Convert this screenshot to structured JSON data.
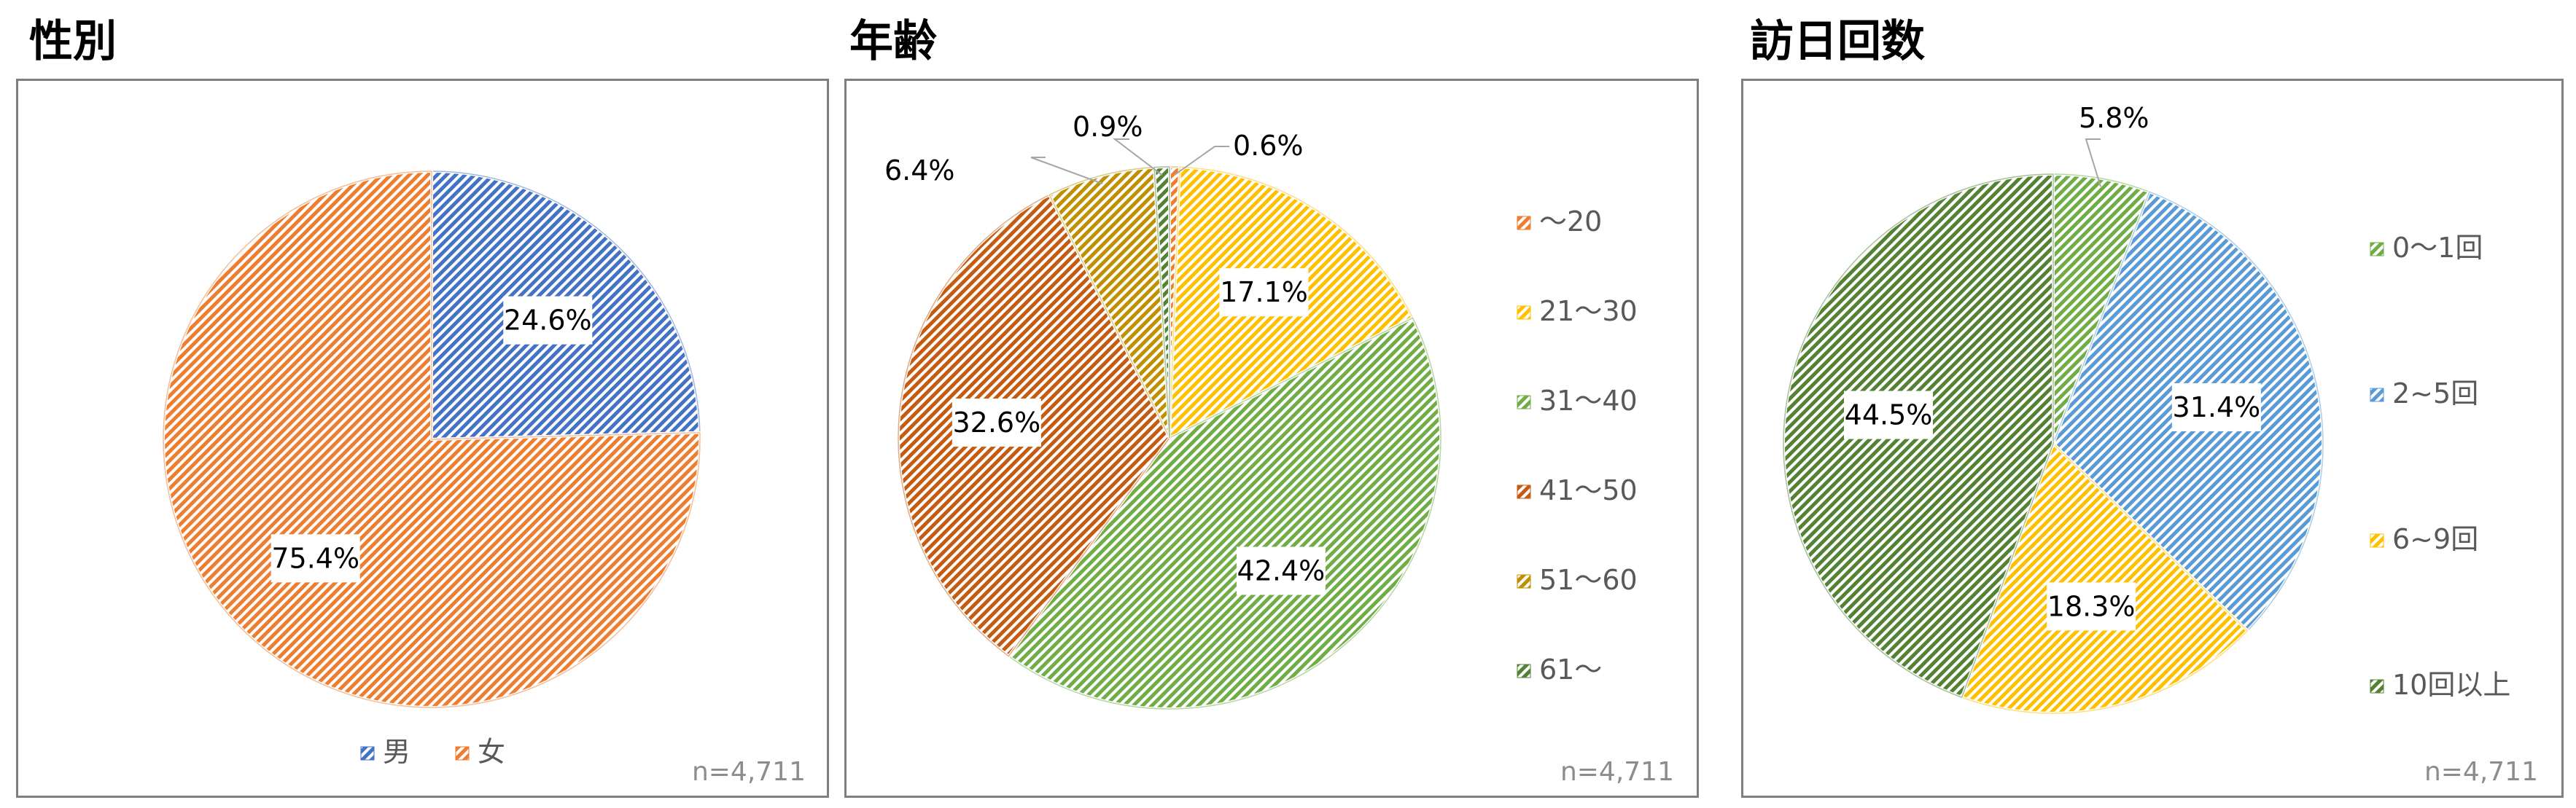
{
  "titles": {
    "gender": "性別",
    "age": "年齢",
    "visits": "訪日回数"
  },
  "sample_note": "n=4,711",
  "colors": {
    "blue": "#4472c4",
    "orange": "#ed7d31",
    "yellow": "#ffc000",
    "green": "#70ad47",
    "lightblue": "#5b9bd5",
    "brown": "#c55a11",
    "olive": "#bf9000",
    "darkgreen": "#548235"
  },
  "chart_data": [
    {
      "type": "pie",
      "title": "性別",
      "categories": [
        "男",
        "女"
      ],
      "values": [
        24.6,
        75.4
      ],
      "value_labels": [
        "24.6%",
        "75.4%"
      ],
      "colors": [
        "#4472c4",
        "#ed7d31"
      ],
      "legend": "bottom",
      "note": "n=4,711"
    },
    {
      "type": "pie",
      "title": "年齢",
      "categories": [
        "～20",
        "21～30",
        "31～40",
        "41～50",
        "51～60",
        "61～"
      ],
      "values": [
        0.6,
        17.1,
        42.4,
        32.6,
        6.4,
        0.9
      ],
      "value_labels": [
        "0.6%",
        "17.1%",
        "42.4%",
        "32.6%",
        "6.4%",
        "0.9%"
      ],
      "colors": [
        "#ed7d31",
        "#ffc000",
        "#70ad47",
        "#c55a11",
        "#bf9000",
        "#548235"
      ],
      "legend": "right",
      "note": "n=4,711"
    },
    {
      "type": "pie",
      "title": "訪日回数",
      "categories": [
        "0～1回",
        "2~5回",
        "6~9回",
        "10回以上"
      ],
      "values": [
        5.8,
        31.4,
        18.3,
        44.5
      ],
      "value_labels": [
        "5.8%",
        "31.4%",
        "18.3%",
        "44.5%"
      ],
      "colors": [
        "#70ad47",
        "#5b9bd5",
        "#ffc000",
        "#548235"
      ],
      "legend": "right",
      "note": "n=4,711"
    }
  ]
}
